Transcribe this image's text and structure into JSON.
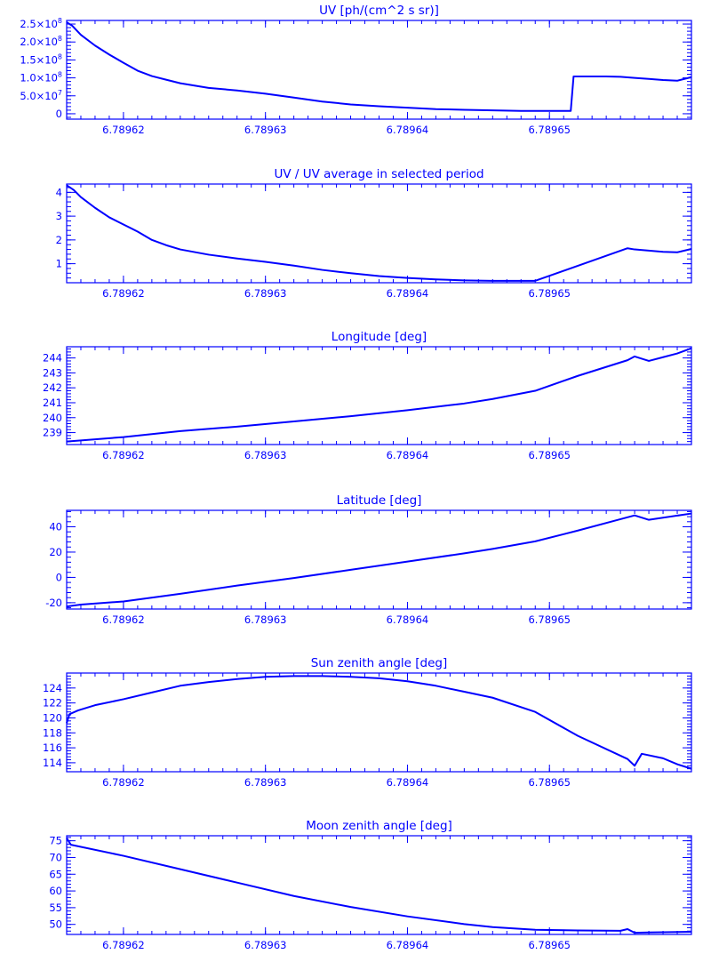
{
  "figure": {
    "line_color": "#0000ff",
    "background": "#ffffff"
  },
  "chart_data": [
    {
      "id": "uv",
      "type": "line",
      "title": "UV [ph/(cm^2 s sr)]",
      "xlabel": "",
      "ylabel": "",
      "xlim": [
        6.789616,
        6.78966
      ],
      "ylim": [
        -15000000.0,
        260000000.0
      ],
      "x_ticks": [
        6.78962,
        6.78963,
        6.78964,
        6.78965
      ],
      "x_tick_labels": [
        "6.78962",
        "6.78963",
        "6.78964",
        "6.78965"
      ],
      "y_ticks": [
        0,
        50000000.0,
        100000000.0,
        150000000.0,
        200000000.0,
        250000000.0
      ],
      "y_tick_labels": [
        {
          "base": "0",
          "exp": ""
        },
        {
          "base": "5.0×10",
          "exp": "7"
        },
        {
          "base": "1.0×10",
          "exp": "8"
        },
        {
          "base": "1.5×10",
          "exp": "8"
        },
        {
          "base": "2.0×10",
          "exp": "8"
        },
        {
          "base": "2.5×10",
          "exp": "8"
        }
      ],
      "series": [
        {
          "x": [
            6.789616,
            6.7896164,
            6.789617,
            6.789618,
            6.789619,
            6.78962,
            6.789621,
            6.789622,
            6.789623,
            6.789624,
            6.789626,
            6.789628,
            6.78963,
            6.789632,
            6.789634,
            6.789636,
            6.789638,
            6.78964,
            6.789642,
            6.789644,
            6.789646,
            6.789648,
            6.7896515,
            6.7896517,
            6.789654,
            6.789655,
            6.789656,
            6.789657,
            6.789658,
            6.789659,
            6.78966
          ],
          "y": [
            255000000.0,
            245000000.0,
            220000000.0,
            190000000.0,
            165000000.0,
            142000000.0,
            120000000.0,
            105000000.0,
            95000000.0,
            85000000.0,
            72000000.0,
            65000000.0,
            56000000.0,
            45000000.0,
            34000000.0,
            26000000.0,
            21000000.0,
            17000000.0,
            13000000.0,
            11000000.0,
            9500000.0,
            8000000.0,
            8000000.0,
            104000000.0,
            104000000.0,
            103000000.0,
            100000000.0,
            97000000.0,
            94000000.0,
            92000000.0,
            102000000.0
          ]
        }
      ]
    },
    {
      "id": "uv-ratio",
      "type": "line",
      "title": "UV / UV average in selected period",
      "xlabel": "",
      "ylabel": "",
      "xlim": [
        6.789616,
        6.78966
      ],
      "ylim": [
        0.2,
        4.35
      ],
      "x_ticks": [
        6.78962,
        6.78963,
        6.78964,
        6.78965
      ],
      "x_tick_labels": [
        "6.78962",
        "6.78963",
        "6.78964",
        "6.78965"
      ],
      "y_ticks": [
        1,
        2,
        3,
        4
      ],
      "y_tick_labels": [
        {
          "base": "1",
          "exp": ""
        },
        {
          "base": "2",
          "exp": ""
        },
        {
          "base": "3",
          "exp": ""
        },
        {
          "base": "4",
          "exp": ""
        }
      ],
      "series": [
        {
          "x": [
            6.789616,
            6.7896165,
            6.789617,
            6.789618,
            6.789619,
            6.78962,
            6.789621,
            6.789622,
            6.789623,
            6.789624,
            6.789626,
            6.789628,
            6.78963,
            6.789632,
            6.789634,
            6.789636,
            6.789638,
            6.78964,
            6.789642,
            6.789644,
            6.789646,
            6.789648,
            6.789649,
            6.7896555,
            6.789656,
            6.789657,
            6.789658,
            6.789659,
            6.78966
          ],
          "y": [
            4.3,
            4.1,
            3.8,
            3.35,
            2.95,
            2.65,
            2.35,
            2.0,
            1.78,
            1.6,
            1.38,
            1.22,
            1.08,
            0.92,
            0.74,
            0.6,
            0.48,
            0.4,
            0.34,
            0.3,
            0.28,
            0.28,
            0.28,
            1.65,
            1.6,
            1.55,
            1.5,
            1.48,
            1.62
          ]
        }
      ]
    },
    {
      "id": "longitude",
      "type": "line",
      "title": "Longitude [deg]",
      "xlabel": "",
      "ylabel": "",
      "xlim": [
        6.789616,
        6.78966
      ],
      "ylim": [
        238.2,
        244.75
      ],
      "x_ticks": [
        6.78962,
        6.78963,
        6.78964,
        6.78965
      ],
      "x_tick_labels": [
        "6.78962",
        "6.78963",
        "6.78964",
        "6.78965"
      ],
      "y_ticks": [
        239,
        240,
        241,
        242,
        243,
        244
      ],
      "y_tick_labels": [
        {
          "base": "239",
          "exp": ""
        },
        {
          "base": "240",
          "exp": ""
        },
        {
          "base": "241",
          "exp": ""
        },
        {
          "base": "242",
          "exp": ""
        },
        {
          "base": "243",
          "exp": ""
        },
        {
          "base": "244",
          "exp": ""
        }
      ],
      "series": [
        {
          "x": [
            6.789616,
            6.78962,
            6.789624,
            6.789628,
            6.789632,
            6.789636,
            6.78964,
            6.789644,
            6.789646,
            6.789649,
            6.789652,
            6.7896555,
            6.789656,
            6.789657,
            6.789658,
            6.789659,
            6.78966
          ],
          "y": [
            238.4,
            238.7,
            239.1,
            239.4,
            239.75,
            240.1,
            240.5,
            240.95,
            241.25,
            241.8,
            242.8,
            243.85,
            244.1,
            243.8,
            244.05,
            244.3,
            244.65
          ]
        }
      ]
    },
    {
      "id": "latitude",
      "type": "line",
      "title": "Latitude [deg]",
      "xlabel": "",
      "ylabel": "",
      "xlim": [
        6.789616,
        6.78966
      ],
      "ylim": [
        -25,
        53
      ],
      "x_ticks": [
        6.78962,
        6.78963,
        6.78964,
        6.78965
      ],
      "x_tick_labels": [
        "6.78962",
        "6.78963",
        "6.78964",
        "6.78965"
      ],
      "y_ticks": [
        -20,
        0,
        20,
        40
      ],
      "y_tick_labels": [
        {
          "base": "-20",
          "exp": ""
        },
        {
          "base": "0",
          "exp": ""
        },
        {
          "base": "20",
          "exp": ""
        },
        {
          "base": "40",
          "exp": ""
        }
      ],
      "series": [
        {
          "x": [
            6.789616,
            6.789617,
            6.78962,
            6.789624,
            6.789628,
            6.789632,
            6.789636,
            6.78964,
            6.789644,
            6.789646,
            6.789649,
            6.789652,
            6.789655,
            6.789656,
            6.789657,
            6.78966
          ],
          "y": [
            -23,
            -21.5,
            -19,
            -13,
            -6.5,
            -0.5,
            6,
            12.5,
            19,
            22.5,
            28.5,
            37,
            46,
            49,
            45.5,
            50.5
          ]
        }
      ]
    },
    {
      "id": "sun-zenith",
      "type": "line",
      "title": "Sun zenith angle [deg]",
      "xlabel": "",
      "ylabel": "",
      "xlim": [
        6.789616,
        6.78966
      ],
      "ylim": [
        112.8,
        126
      ],
      "x_ticks": [
        6.78962,
        6.78963,
        6.78964,
        6.78965
      ],
      "x_tick_labels": [
        "6.78962",
        "6.78963",
        "6.78964",
        "6.78965"
      ],
      "y_ticks": [
        114,
        116,
        118,
        120,
        122,
        124
      ],
      "y_tick_labels": [
        {
          "base": "114",
          "exp": ""
        },
        {
          "base": "116",
          "exp": ""
        },
        {
          "base": "118",
          "exp": ""
        },
        {
          "base": "120",
          "exp": ""
        },
        {
          "base": "122",
          "exp": ""
        },
        {
          "base": "124",
          "exp": ""
        }
      ],
      "series": [
        {
          "x": [
            6.789616,
            6.7896162,
            6.7896168,
            6.789618,
            6.78962,
            6.789622,
            6.789624,
            6.789626,
            6.789628,
            6.78963,
            6.789632,
            6.789634,
            6.789636,
            6.789638,
            6.78964,
            6.789642,
            6.789644,
            6.789646,
            6.789649,
            6.789652,
            6.7896555,
            6.789656,
            6.7896565,
            6.789658,
            6.789659,
            6.78966
          ],
          "y": [
            119.3,
            120.5,
            121,
            121.7,
            122.5,
            123.4,
            124.3,
            124.8,
            125.2,
            125.5,
            125.6,
            125.6,
            125.5,
            125.3,
            124.9,
            124.3,
            123.5,
            122.7,
            120.8,
            117.6,
            114.5,
            113.6,
            115.2,
            114.6,
            113.8,
            113.2
          ]
        }
      ]
    },
    {
      "id": "moon-zenith",
      "type": "line",
      "title": "Moon zenith angle [deg]",
      "xlabel": "",
      "ylabel": "",
      "xlim": [
        6.789616,
        6.78966
      ],
      "ylim": [
        47,
        76.5
      ],
      "x_ticks": [
        6.78962,
        6.78963,
        6.78964,
        6.78965
      ],
      "x_tick_labels": [
        "6.78962",
        "6.78963",
        "6.78964",
        "6.78965"
      ],
      "y_ticks": [
        50,
        55,
        60,
        65,
        70,
        75
      ],
      "y_tick_labels": [
        {
          "base": "50",
          "exp": ""
        },
        {
          "base": "55",
          "exp": ""
        },
        {
          "base": "60",
          "exp": ""
        },
        {
          "base": "65",
          "exp": ""
        },
        {
          "base": "70",
          "exp": ""
        },
        {
          "base": "75",
          "exp": ""
        }
      ],
      "series": [
        {
          "x": [
            6.789616,
            6.7896163,
            6.78962,
            6.789624,
            6.789628,
            6.789632,
            6.789636,
            6.78964,
            6.789644,
            6.789646,
            6.789649,
            6.789652,
            6.789655,
            6.7896555,
            6.789656,
            6.789657,
            6.78966
          ],
          "y": [
            75.8,
            73.8,
            70.5,
            66.5,
            62.5,
            58.5,
            55.2,
            52.4,
            50.1,
            49.2,
            48.4,
            48.2,
            48.1,
            48.6,
            47.5,
            47.6,
            47.8
          ]
        }
      ]
    }
  ]
}
